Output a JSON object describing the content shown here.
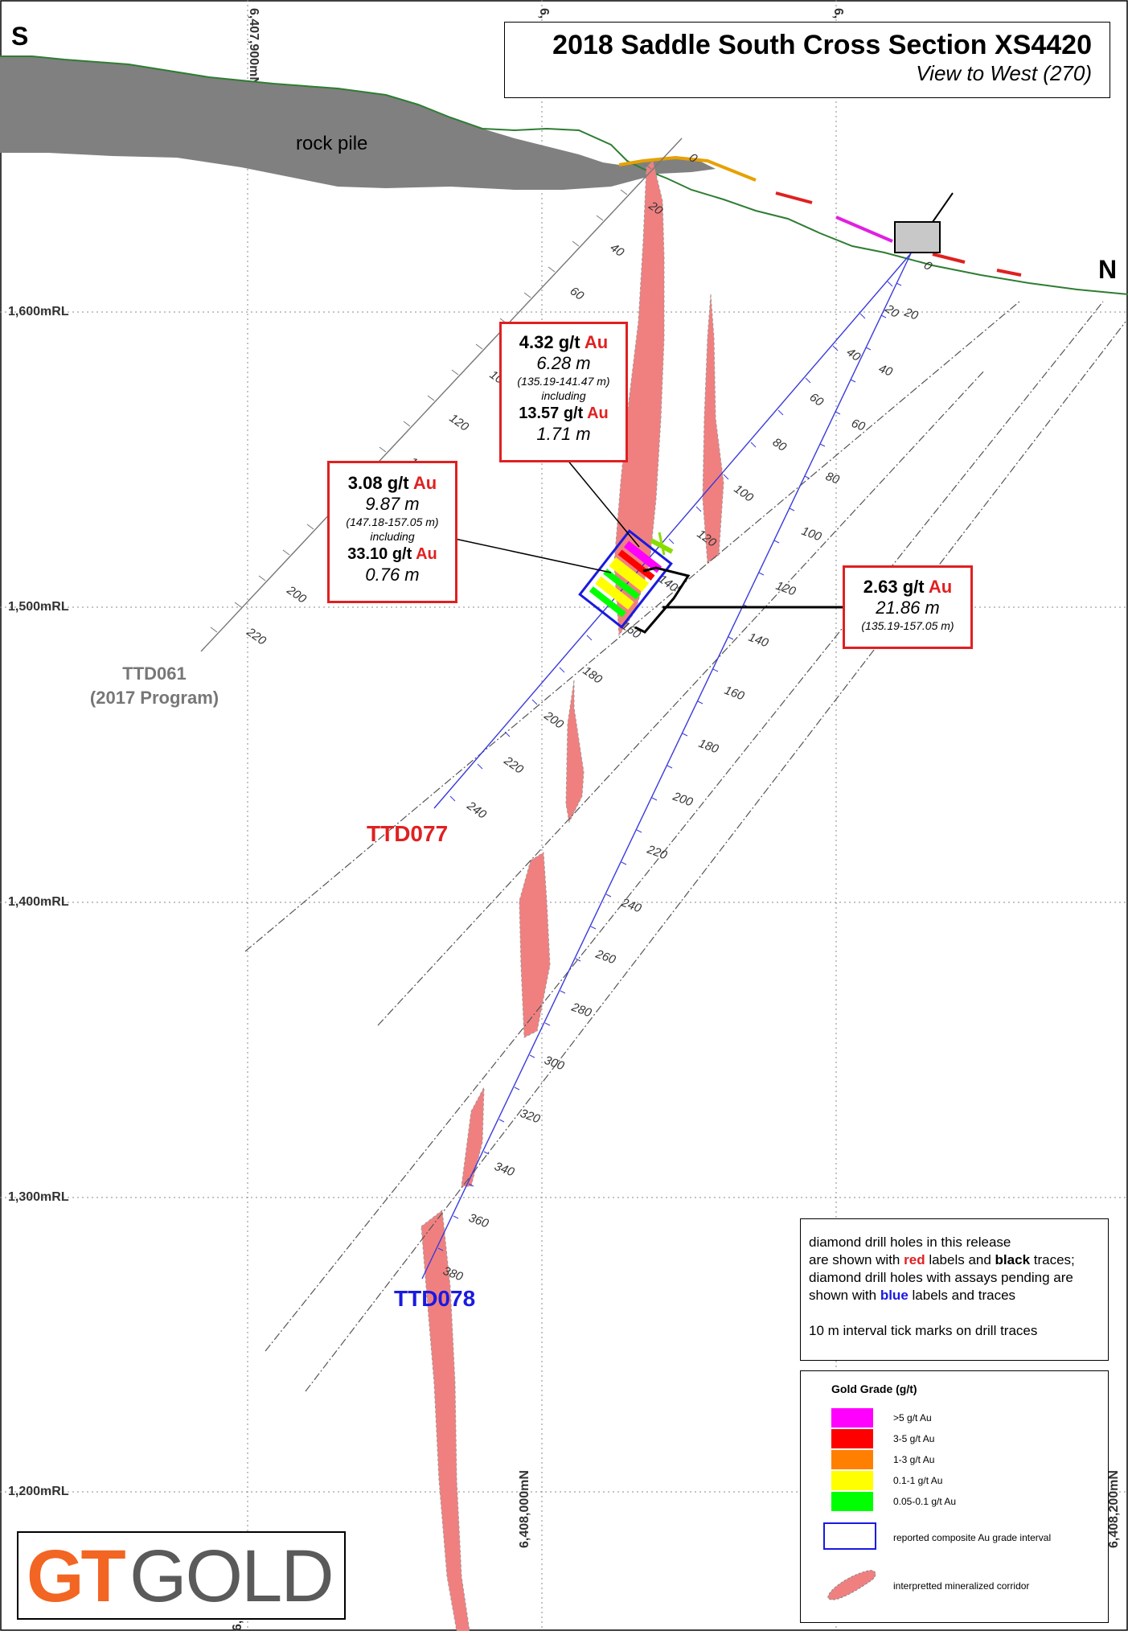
{
  "title": "2018 Saddle South Cross Section XS4420",
  "subtitle": "View to West (270)",
  "compass": {
    "left": "S",
    "right": "N"
  },
  "feature_labels": {
    "rock_pile": "rock pile"
  },
  "grid": {
    "elevation_labels": [
      "1,600mRL",
      "1,500mRL",
      "1,400mRL",
      "1,300mRL",
      "1,200mRL"
    ],
    "northing_labels": [
      "6,407,900mN",
      "6,408,000mN",
      "6,408,200mN",
      "6,",
      "6,",
      "6,"
    ]
  },
  "holes": {
    "ttd061": {
      "name": "TTD061",
      "program": "(2017 Program)",
      "ticks": [
        "0",
        "20",
        "40",
        "60",
        "100",
        "120",
        "140",
        "200",
        "220"
      ]
    },
    "ttd077": {
      "name": "TTD077",
      "ticks": [
        "20",
        "40",
        "60",
        "80",
        "100",
        "120",
        "140",
        "160",
        "180",
        "200",
        "220",
        "240"
      ]
    },
    "ttd078": {
      "name": "TTD078",
      "ticks": [
        "0",
        "20",
        "40",
        "60",
        "80",
        "100",
        "120",
        "140",
        "160",
        "180",
        "200",
        "220",
        "240",
        "260",
        "280",
        "300",
        "320",
        "340",
        "360",
        "380"
      ]
    },
    "ttd061_lower_tick": "20"
  },
  "intercepts": [
    {
      "grade": "4.32 g/t",
      "element": "Au",
      "length": "6.28 m",
      "range": "(135.19-141.47 m)",
      "including": "including",
      "sub_grade": "13.57 g/t",
      "sub_element": "Au",
      "sub_length": "1.71 m"
    },
    {
      "grade": "3.08 g/t",
      "element": "Au",
      "length": "9.87 m",
      "range": "(147.18-157.05 m)",
      "including": "including",
      "sub_grade": "33.10 g/t",
      "sub_element": "Au",
      "sub_length": "0.76 m"
    },
    {
      "grade": "2.63 g/t",
      "element": "Au",
      "length": "21.86 m",
      "range": "(135.19-157.05 m)"
    }
  ],
  "note": {
    "l1": "diamond drill holes in this release",
    "l2a": "are shown with ",
    "l2red": "red",
    "l2b": " labels and ",
    "l2blk": "black",
    "l2c": " traces;",
    "l3": "diamond drill holes with assays pending are",
    "l4a": "shown with ",
    "l4blu": "blue",
    "l4b": " labels and traces",
    "l5": "10 m interval tick marks on drill traces"
  },
  "legend": {
    "title": "Gold Grade (g/t)",
    "items": [
      {
        "label": ">5 g/t Au",
        "color": "#ff00ff"
      },
      {
        "label": "3-5 g/t Au",
        "color": "#ff0000"
      },
      {
        "label": "1-3 g/t Au",
        "color": "#ff8000"
      },
      {
        "label": "0.1-1 g/t Au",
        "color": "#ffff00"
      },
      {
        "label": "0.05-0.1 g/t Au",
        "color": "#00ff00"
      }
    ],
    "composite": "reported composite Au grade interval",
    "corridor": "interpretted mineralized corridor"
  },
  "logo": {
    "part1": "GT",
    "part2": "GOLD"
  },
  "colors": {
    "corridor": "#f08080",
    "rock_pile": "#808080",
    "release_red": "#e02020",
    "pending_blue": "#1a1ae0"
  }
}
